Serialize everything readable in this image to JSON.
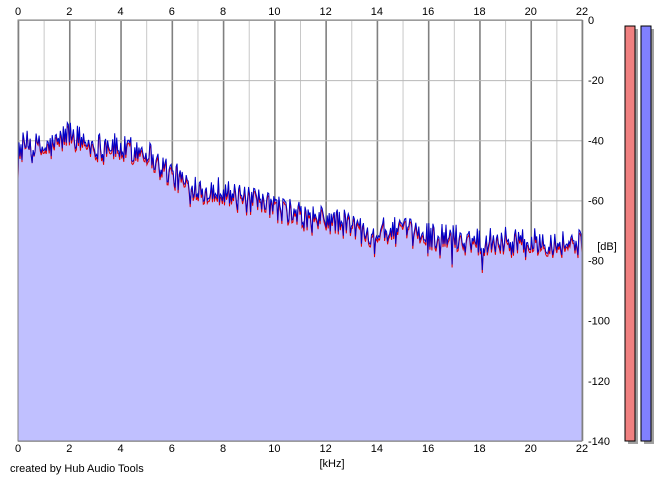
{
  "chart_data": {
    "type": "area",
    "xlabel": "[kHz]",
    "ylabel": "[dB]",
    "xlim": [
      0,
      22
    ],
    "ylim": [
      -140,
      0
    ],
    "x_ticks": [
      0,
      2,
      4,
      6,
      8,
      10,
      12,
      14,
      16,
      18,
      20,
      22
    ],
    "y_ticks": [
      0,
      -20,
      -40,
      -60,
      -80,
      -100,
      -120,
      -140
    ],
    "y_tick_labels": [
      "0",
      "-20",
      "-40",
      "-60",
      "-80",
      "-100",
      "-120",
      "-140"
    ],
    "grid": true,
    "series": [
      {
        "color": "#e00000",
        "x": [
          0,
          0.5,
          1,
          1.5,
          2,
          2.5,
          3,
          3.5,
          4,
          4.5,
          5,
          5.5,
          6,
          6.5,
          7,
          7.5,
          8,
          8.5,
          9,
          9.5,
          10,
          10.5,
          11,
          11.5,
          12,
          12.5,
          13,
          13.5,
          14,
          14.5,
          15,
          15.5,
          16,
          16.5,
          17,
          17.5,
          18,
          18.5,
          19,
          19.5,
          20,
          20.5,
          21,
          21.5,
          22
        ],
        "values": [
          -43,
          -41,
          -44,
          -42,
          -38,
          -41,
          -43,
          -42,
          -44,
          -44,
          -44,
          -49,
          -52,
          -55,
          -56,
          -58,
          -57,
          -60,
          -61,
          -62,
          -63,
          -64,
          -66,
          -67,
          -67,
          -68,
          -69,
          -71,
          -71,
          -71,
          -71,
          -72,
          -72,
          -73,
          -73,
          -74,
          -74,
          -74,
          -74,
          -74,
          -75,
          -74,
          -75,
          -75,
          -75
        ]
      },
      {
        "color": "#0000c8",
        "x": [
          0,
          0.5,
          1,
          1.5,
          2,
          2.5,
          3,
          3.5,
          4,
          4.5,
          5,
          5.5,
          6,
          6.5,
          7,
          7.5,
          8,
          8.5,
          9,
          9.5,
          10,
          10.5,
          11,
          11.5,
          12,
          12.5,
          13,
          13.5,
          14,
          14.5,
          15,
          15.5,
          16,
          16.5,
          17,
          17.5,
          18,
          18.5,
          19,
          19.5,
          20,
          20.5,
          21,
          21.5,
          22
        ],
        "values": [
          -42,
          -41,
          -43,
          -41,
          -37,
          -40,
          -42,
          -41,
          -43,
          -43,
          -43,
          -48,
          -51,
          -54,
          -55,
          -57,
          -56,
          -59,
          -60,
          -61,
          -62,
          -63,
          -65,
          -66,
          -66,
          -67,
          -68,
          -70,
          -70,
          -70,
          -70,
          -71,
          -71,
          -72,
          -72,
          -73,
          -73,
          -73,
          -73,
          -73,
          -74,
          -73,
          -74,
          -74,
          -74
        ]
      }
    ],
    "fill_color": "#c0c0ff",
    "level_meters": [
      {
        "color": "#f08080",
        "value": -2
      },
      {
        "color": "#8080ff",
        "value": -2
      }
    ]
  },
  "footer": {
    "credit": "created by Hub Audio Tools"
  }
}
